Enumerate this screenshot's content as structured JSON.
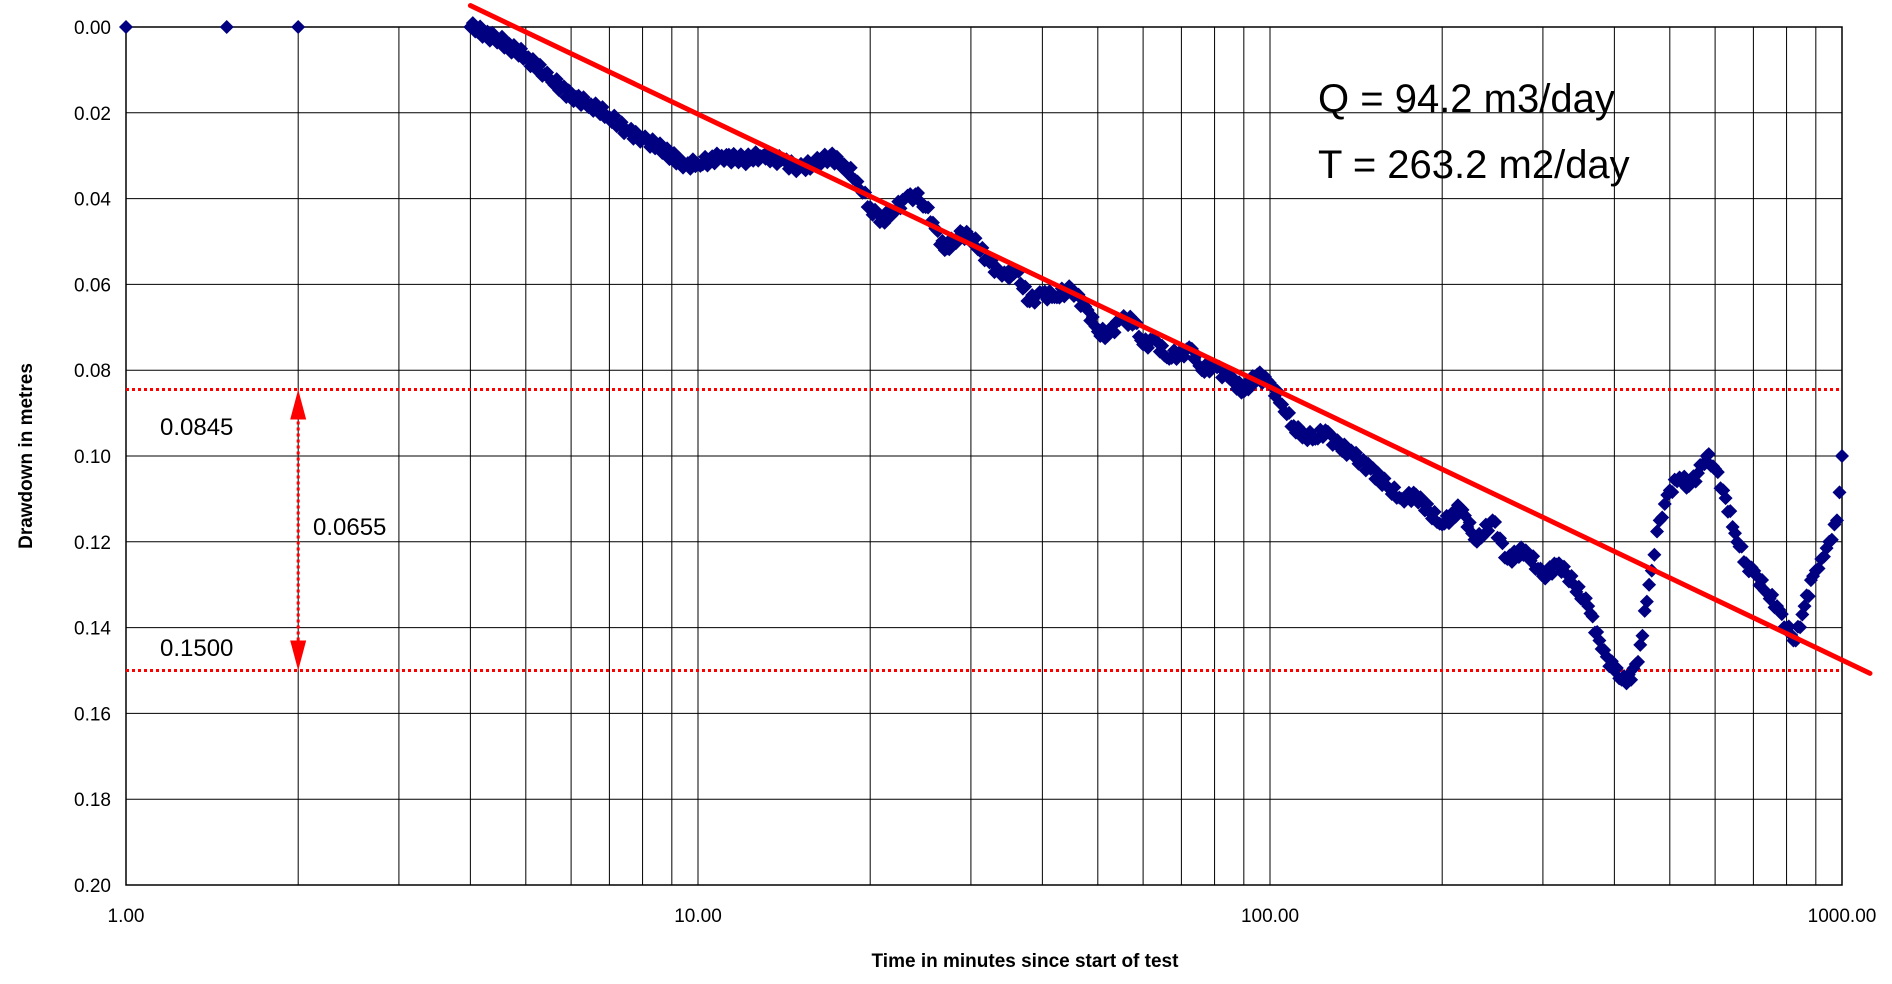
{
  "chart_data": {
    "type": "scatter",
    "xlabel": "Time in minutes since start of test",
    "ylabel": "Drawdown in metres",
    "x_scale": "log",
    "xlim": [
      1,
      1000
    ],
    "ylim": [
      0.0,
      0.2
    ],
    "y_inverted": true,
    "x_tick_labels": [
      "1.00",
      "10.00",
      "100.00",
      "1000.00"
    ],
    "y_tick_labels": [
      "0.00",
      "0.02",
      "0.04",
      "0.06",
      "0.08",
      "0.10",
      "0.12",
      "0.14",
      "0.16",
      "0.18",
      "0.20"
    ],
    "grid": true,
    "marker_color": "#000080",
    "trend_color": "#ff0000",
    "text_annotations": [
      "Q = 94.2 m3/day",
      "T = 263.2 m2/day"
    ],
    "annotation_labels": {
      "upper": "0.0845",
      "lower": "0.1500",
      "diff": "0.0655"
    },
    "reference_lines": [
      0.0845,
      0.15
    ],
    "difference_arrow": {
      "x": 2.0,
      "from": 0.0845,
      "to": 0.15
    },
    "trend_line": {
      "x": [
        4.0,
        1000.0
      ],
      "y": [
        -0.005,
        0.1495
      ]
    },
    "series": [
      {
        "marker": "diamond",
        "x": [
          1.0,
          1.5,
          2.0,
          4.0,
          4.5,
          5.0,
          5.5,
          6.0,
          6.5,
          7.0,
          7.5,
          8.0,
          8.5,
          9.0,
          9.5,
          10.0,
          11.0,
          12.0,
          13.0,
          14.0,
          15.0,
          16.0,
          17.0,
          18.0,
          19.0,
          20.0,
          21.0,
          22.0,
          23.0,
          24.0,
          25.0,
          26.0,
          27.0,
          28.0,
          29.0,
          30.0,
          32.0,
          34.0,
          36.0,
          38.0,
          40.0,
          42.0,
          45.0,
          48.0,
          50.0,
          52.0,
          55.0,
          58.0,
          60.0,
          63.0,
          66.0,
          70.0,
          73.0,
          76.0,
          80.0,
          85.0,
          90.0,
          95.0,
          100.0,
          105.0,
          110.0,
          115.0,
          120.0,
          125.0,
          130.0,
          140.0,
          150.0,
          160.0,
          170.0,
          180.0,
          190.0,
          200.0,
          215.0,
          230.0,
          245.0,
          260.0,
          280.0,
          300.0,
          320.0,
          340.0,
          360.0,
          380.0,
          400.0,
          420.0,
          440.0,
          460.0,
          480.0,
          500.0,
          520.0,
          540.0,
          560.0,
          580.0,
          600.0,
          620.0,
          650.0,
          680.0,
          710.0,
          740.0,
          770.0,
          800.0,
          830.0,
          860.0,
          890.0,
          920.0,
          950.0,
          980.0,
          1000.0
        ],
        "y": [
          0.0,
          0.0,
          0.0,
          0.0,
          0.003,
          0.007,
          0.012,
          0.016,
          0.018,
          0.021,
          0.024,
          0.026,
          0.028,
          0.03,
          0.032,
          0.032,
          0.03,
          0.031,
          0.03,
          0.031,
          0.033,
          0.032,
          0.03,
          0.032,
          0.036,
          0.042,
          0.045,
          0.043,
          0.04,
          0.039,
          0.042,
          0.047,
          0.052,
          0.05,
          0.048,
          0.049,
          0.054,
          0.058,
          0.057,
          0.064,
          0.062,
          0.063,
          0.061,
          0.066,
          0.071,
          0.072,
          0.068,
          0.069,
          0.074,
          0.073,
          0.077,
          0.076,
          0.075,
          0.08,
          0.079,
          0.082,
          0.085,
          0.081,
          0.083,
          0.088,
          0.093,
          0.095,
          0.096,
          0.094,
          0.097,
          0.1,
          0.103,
          0.107,
          0.11,
          0.109,
          0.113,
          0.116,
          0.112,
          0.12,
          0.115,
          0.124,
          0.122,
          0.128,
          0.125,
          0.13,
          0.135,
          0.145,
          0.15,
          0.153,
          0.148,
          0.13,
          0.115,
          0.108,
          0.105,
          0.107,
          0.104,
          0.1,
          0.103,
          0.108,
          0.118,
          0.125,
          0.128,
          0.132,
          0.135,
          0.14,
          0.143,
          0.135,
          0.128,
          0.124,
          0.12,
          0.115,
          0.1
        ]
      }
    ]
  }
}
